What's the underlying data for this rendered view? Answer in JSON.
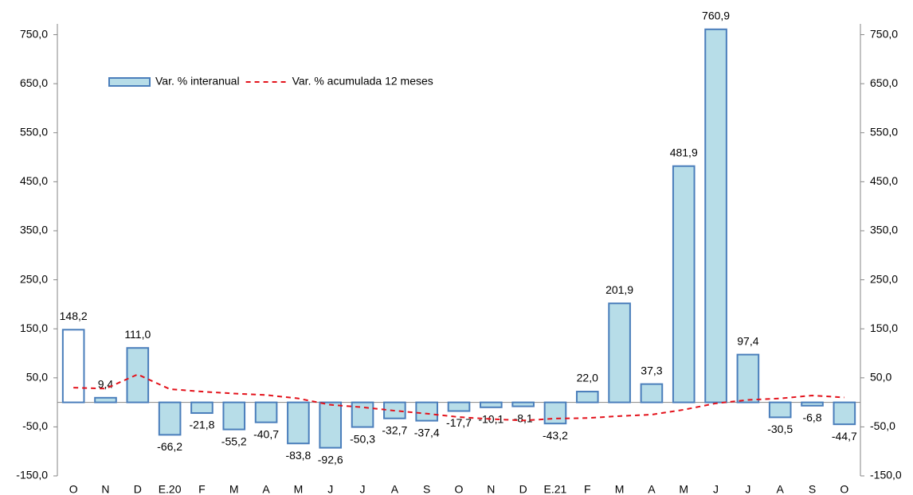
{
  "chart_data": {
    "type": "bar",
    "categories": [
      "O",
      "N",
      "D",
      "E.20",
      "F",
      "M",
      "A",
      "M",
      "J",
      "J",
      "A",
      "S",
      "O",
      "N",
      "D",
      "E.21",
      "F",
      "M",
      "A",
      "M",
      "J",
      "J",
      "A",
      "S",
      "O"
    ],
    "series": [
      {
        "name": "Var. % interanual",
        "type": "bar",
        "color": "#b7dde8",
        "edge_color": "#4a7ebb",
        "colors": [
          "#ffffff",
          "#b7dde8",
          "#b7dde8",
          "#b7dde8",
          "#b7dde8",
          "#b7dde8",
          "#b7dde8",
          "#b7dde8",
          "#b7dde8",
          "#b7dde8",
          "#b7dde8",
          "#b7dde8",
          "#b7dde8",
          "#b7dde8",
          "#b7dde8",
          "#b7dde8",
          "#b7dde8",
          "#b7dde8",
          "#b7dde8",
          "#b7dde8",
          "#b7dde8",
          "#b7dde8",
          "#b7dde8",
          "#b7dde8",
          "#b7dde8"
        ],
        "values": [
          148.2,
          9.4,
          111.0,
          -66.2,
          -21.8,
          -55.2,
          -40.7,
          -83.8,
          -92.6,
          -50.3,
          -32.7,
          -37.4,
          -17.7,
          -10.1,
          -8.1,
          -43.2,
          22.0,
          201.9,
          37.3,
          481.9,
          760.9,
          97.4,
          -30.5,
          -6.8,
          -44.7
        ],
        "value_labels": [
          "148,2",
          "9,4",
          "111,0",
          "-66,2",
          "-21,8",
          "-55,2",
          "-40,7",
          "-83,8",
          "-92,6",
          "-50,3",
          "-32,7",
          "-37,4",
          "-17,7",
          "-10,1",
          "-8,1",
          "-43,2",
          "22,0",
          "201,9",
          "37,3",
          "481,9",
          "760,9",
          "97,4",
          "-30,5",
          "-6,8",
          "-44,7"
        ]
      },
      {
        "name": "Var. % acumulada 12 meses",
        "type": "line",
        "axis": "y2",
        "color": "#e3121b",
        "dashed": true,
        "values": [
          30,
          28,
          57,
          27,
          22,
          18,
          15,
          8,
          -5,
          -10,
          -17,
          -23,
          -30,
          -34,
          -37,
          -33,
          -32,
          -28,
          -25,
          -15,
          -2,
          5,
          8,
          14,
          10
        ]
      }
    ],
    "ylim": [
      -150,
      772
    ],
    "yticks": [
      {
        "value": -150,
        "label": "-150,0"
      },
      {
        "value": -50,
        "label": "-50,0"
      },
      {
        "value": 50,
        "label": "50,0"
      },
      {
        "value": 150,
        "label": "150,0"
      },
      {
        "value": 250,
        "label": "250,0"
      },
      {
        "value": 350,
        "label": "350,0"
      },
      {
        "value": 450,
        "label": "450,0"
      },
      {
        "value": 550,
        "label": "550,0"
      },
      {
        "value": 650,
        "label": "650,0"
      },
      {
        "value": 750,
        "label": "750,0"
      }
    ],
    "y2lim": [
      -150,
      772
    ],
    "y2ticks": [
      {
        "value": -150,
        "label": "-150,0"
      },
      {
        "value": -50,
        "label": "-50,0"
      },
      {
        "value": 50,
        "label": "50,0"
      },
      {
        "value": 150,
        "label": "150,0"
      },
      {
        "value": 250,
        "label": "250,0"
      },
      {
        "value": 350,
        "label": "350,0"
      },
      {
        "value": 450,
        "label": "450,0"
      },
      {
        "value": 550,
        "label": "550,0"
      },
      {
        "value": 650,
        "label": "650,0"
      },
      {
        "value": 750,
        "label": "750,0"
      }
    ],
    "legend": "top-left"
  }
}
